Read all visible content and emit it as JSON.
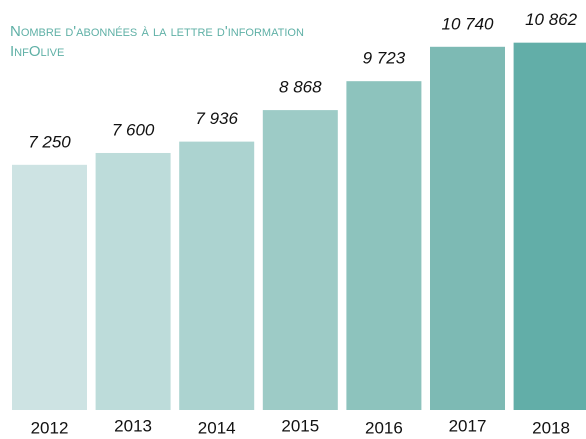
{
  "chart_data": {
    "type": "bar",
    "title": "Nombre d'abonnées à la lettre d'information InfOlive",
    "categories": [
      "2012",
      "2013",
      "2014",
      "2015",
      "2016",
      "2017",
      "2018"
    ],
    "values": [
      7250,
      7600,
      7936,
      8868,
      9723,
      10740,
      10862
    ],
    "value_labels": [
      "7 250",
      "7 600",
      "7 936",
      "8 868",
      "9 723",
      "10 740",
      "10 862"
    ],
    "colors": [
      "#cde3e3",
      "#bddcda",
      "#acd3d0",
      "#9dcbc6",
      "#8dc3bd",
      "#7dbab4",
      "#62aea8"
    ],
    "ylim": [
      0,
      11000
    ]
  }
}
